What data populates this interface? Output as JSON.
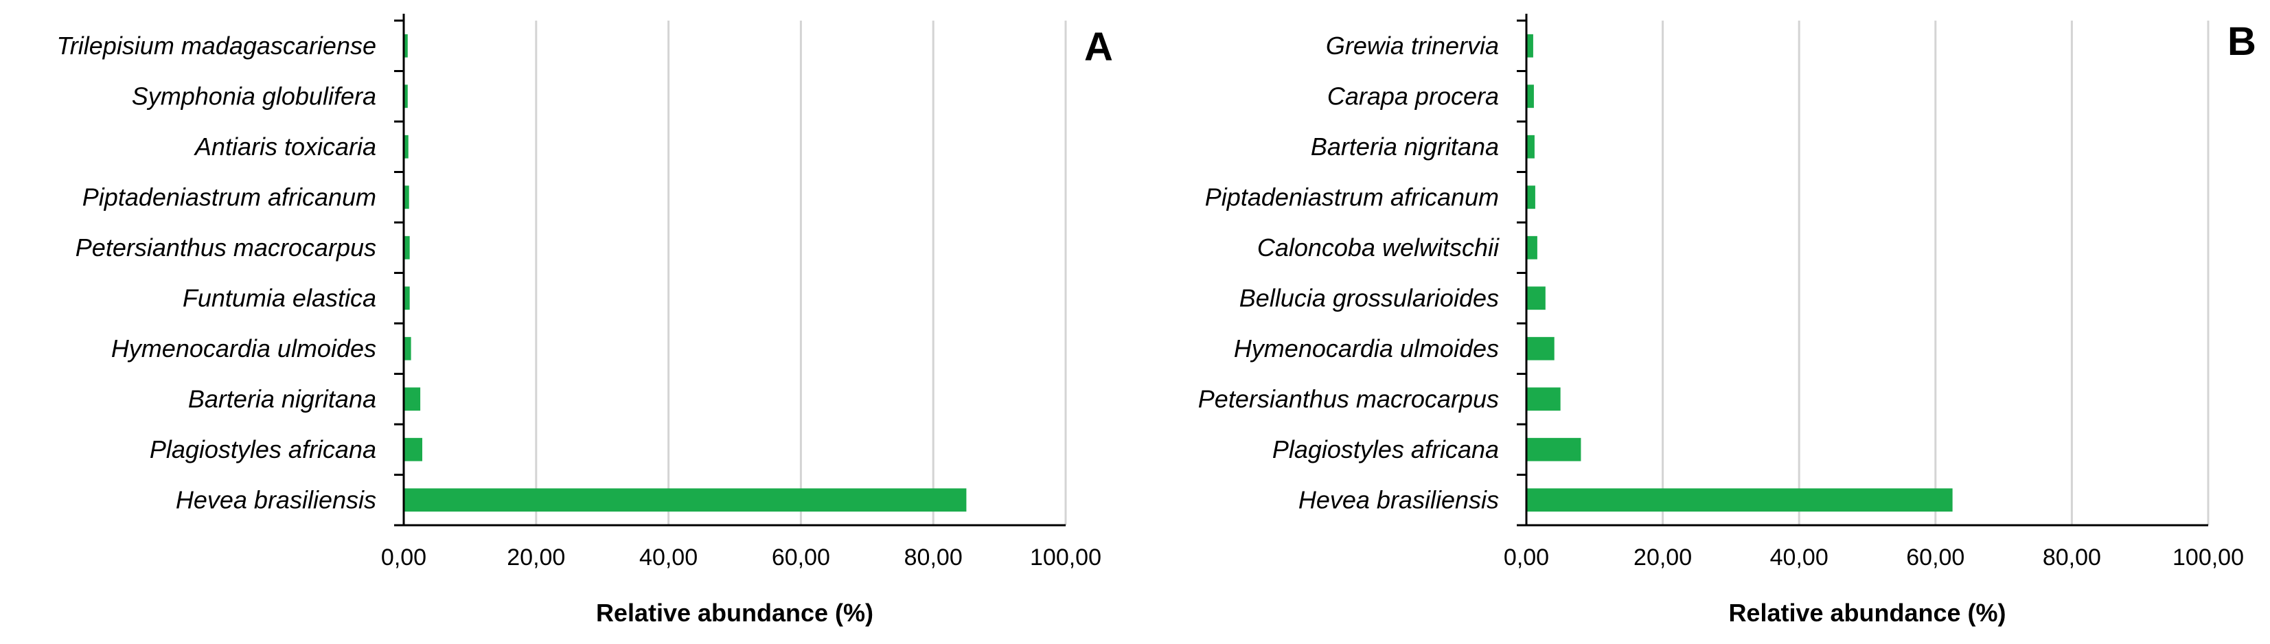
{
  "chart_data": [
    {
      "type": "bar",
      "orientation": "horizontal",
      "panel_label": "A",
      "xlabel": "Relative abundance (%)",
      "xlim": [
        0,
        100
      ],
      "xticks": [
        "0,00",
        "20,00",
        "40,00",
        "60,00",
        "80,00",
        "100,00"
      ],
      "grid": "vertical",
      "bar_color": "#1aab4b",
      "categories": [
        "Trilepisium madagascariense",
        "Symphonia globulifera",
        "Antiaris toxicaria",
        "Piptadeniastrum africanum",
        "Petersianthus macrocarpus",
        "Funtumia elastica",
        "Hymenocardia ulmoides",
        "Barteria nigritana",
        "Plagiostyles africana",
        "Hevea brasiliensis"
      ],
      "values": [
        0.6,
        0.6,
        0.7,
        0.8,
        0.9,
        0.9,
        1.1,
        2.5,
        2.8,
        85.0
      ]
    },
    {
      "type": "bar",
      "orientation": "horizontal",
      "panel_label": "B",
      "xlabel": "Relative abundance (%)",
      "xlim": [
        0,
        100
      ],
      "xticks": [
        "0,00",
        "20,00",
        "40,00",
        "60,00",
        "80,00",
        "100,00"
      ],
      "grid": "vertical",
      "bar_color": "#1aab4b",
      "categories": [
        "Grewia trinervia",
        "Carapa procera",
        "Barteria nigritana",
        "Piptadeniastrum africanum",
        "Caloncoba welwitschii",
        "Bellucia grossularioides",
        "Hymenocardia ulmoides",
        "Petersianthus macrocarpus",
        "Plagiostyles africana",
        "Hevea brasiliensis"
      ],
      "values": [
        1.0,
        1.1,
        1.2,
        1.3,
        1.6,
        2.8,
        4.1,
        5.0,
        8.0,
        62.5
      ]
    }
  ]
}
